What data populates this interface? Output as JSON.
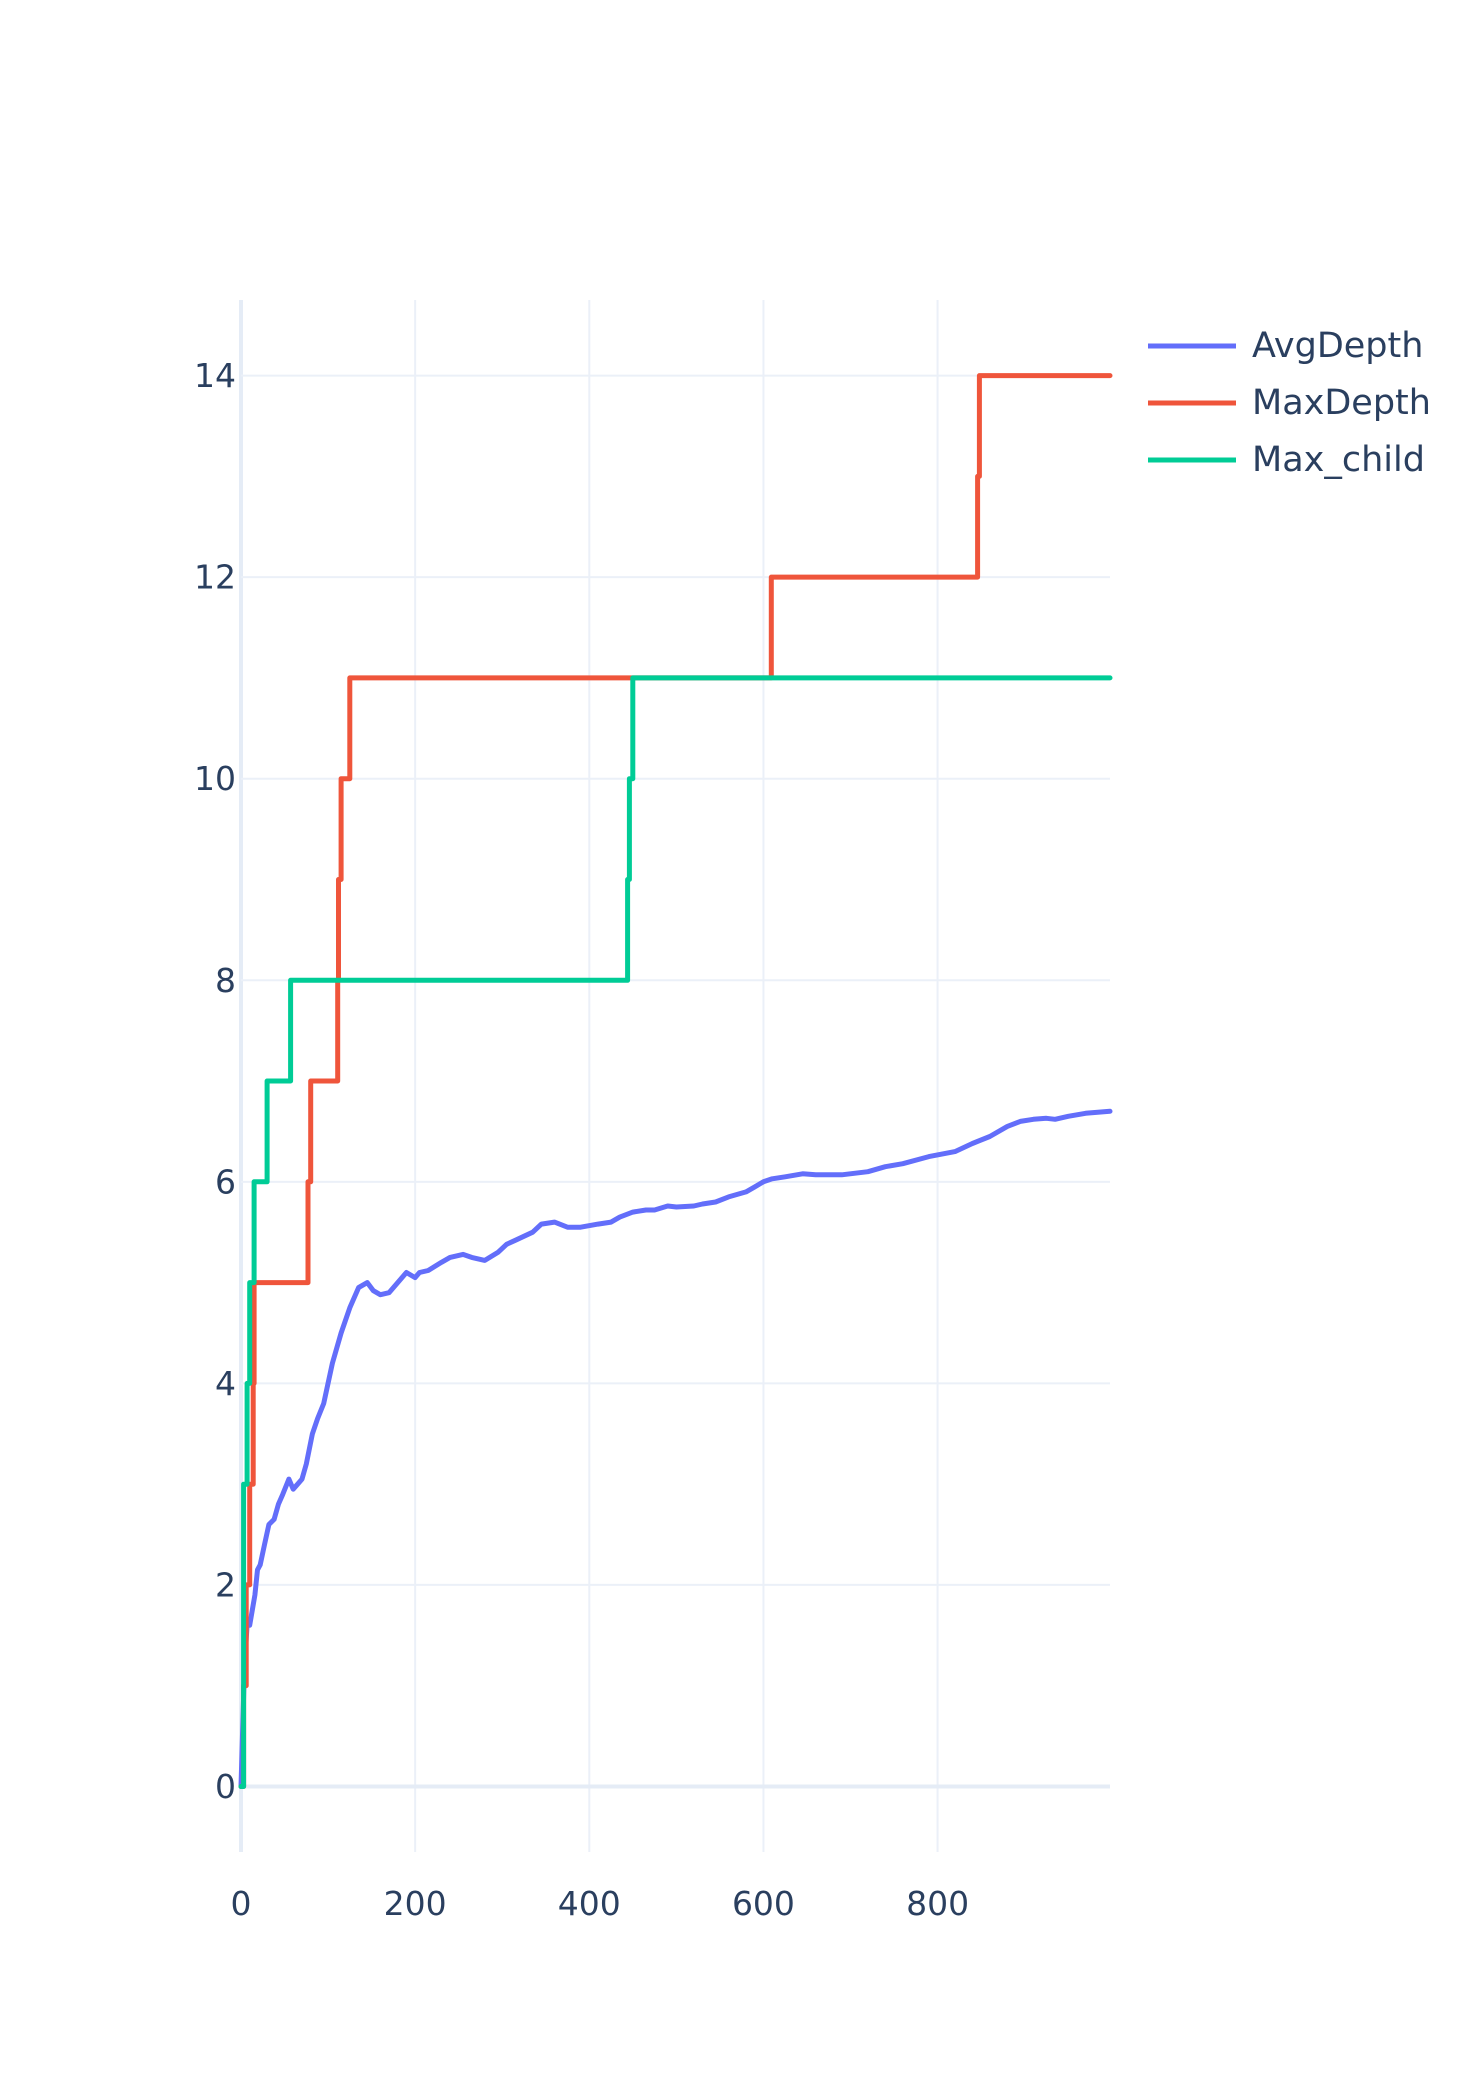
{
  "chart_data": {
    "type": "line",
    "title": "",
    "xlabel": "",
    "ylabel": "",
    "xlim": [
      0,
      998
    ],
    "ylim": [
      -0.65,
      14.75
    ],
    "xticks": [
      0,
      200,
      400,
      600,
      800
    ],
    "yticks": [
      0,
      2,
      4,
      6,
      8,
      10,
      12,
      14
    ],
    "grid": true,
    "legend_position": "top-right",
    "series": [
      {
        "name": "AvgDepth",
        "color": "#636efa",
        "x": [
          0,
          4,
          7,
          10,
          13,
          16,
          19,
          22,
          27,
          32,
          38,
          43,
          48,
          55,
          60,
          65,
          70,
          75,
          82,
          88,
          95,
          105,
          115,
          125,
          135,
          145,
          152,
          160,
          170,
          180,
          190,
          200,
          205,
          215,
          230,
          240,
          255,
          265,
          280,
          295,
          305,
          315,
          335,
          345,
          360,
          375,
          390,
          410,
          425,
          435,
          450,
          465,
          475,
          490,
          500,
          520,
          530,
          545,
          560,
          580,
          590,
          600,
          610,
          625,
          645,
          660,
          690,
          720,
          740,
          760,
          790,
          820,
          840,
          860,
          880,
          895,
          910,
          925,
          935,
          950,
          970,
          998
        ],
        "y": [
          0.0,
          1.2,
          1.6,
          1.6,
          1.75,
          1.9,
          2.15,
          2.2,
          2.4,
          2.6,
          2.65,
          2.8,
          2.9,
          3.05,
          2.95,
          3.0,
          3.05,
          3.2,
          3.5,
          3.65,
          3.8,
          4.2,
          4.5,
          4.75,
          4.95,
          5.0,
          4.92,
          4.88,
          4.9,
          5.0,
          5.1,
          5.05,
          5.1,
          5.12,
          5.2,
          5.25,
          5.28,
          5.25,
          5.22,
          5.3,
          5.38,
          5.42,
          5.5,
          5.58,
          5.6,
          5.55,
          5.55,
          5.58,
          5.6,
          5.65,
          5.7,
          5.72,
          5.72,
          5.76,
          5.75,
          5.76,
          5.78,
          5.8,
          5.85,
          5.9,
          5.95,
          6.0,
          6.03,
          6.05,
          6.08,
          6.07,
          6.07,
          6.1,
          6.15,
          6.18,
          6.25,
          6.3,
          6.38,
          6.45,
          6.55,
          6.6,
          6.62,
          6.63,
          6.62,
          6.65,
          6.68,
          6.7
        ]
      },
      {
        "name": "MaxDepth",
        "color": "#ef553b",
        "x": [
          0,
          3,
          6,
          10,
          12,
          14,
          15,
          76,
          77,
          79,
          80,
          110,
          111,
          112,
          115,
          120,
          124,
          125,
          608,
          609,
          844,
          846,
          848,
          998
        ],
        "y": [
          0,
          1,
          2,
          3,
          3,
          4,
          5,
          5,
          6,
          6,
          7,
          7,
          8,
          9,
          10,
          10,
          10,
          11,
          11,
          12,
          12,
          13,
          14,
          14
        ],
        "step": "hv"
      },
      {
        "name": "Max_child",
        "color": "#00cc96",
        "x": [
          0,
          3,
          7,
          10,
          15,
          22,
          30,
          57,
          442,
          444,
          446,
          448,
          450,
          998
        ],
        "y": [
          0,
          3,
          4,
          5,
          6,
          6,
          7,
          8,
          8,
          9,
          10,
          10,
          11,
          11
        ],
        "step": "hv"
      }
    ]
  }
}
